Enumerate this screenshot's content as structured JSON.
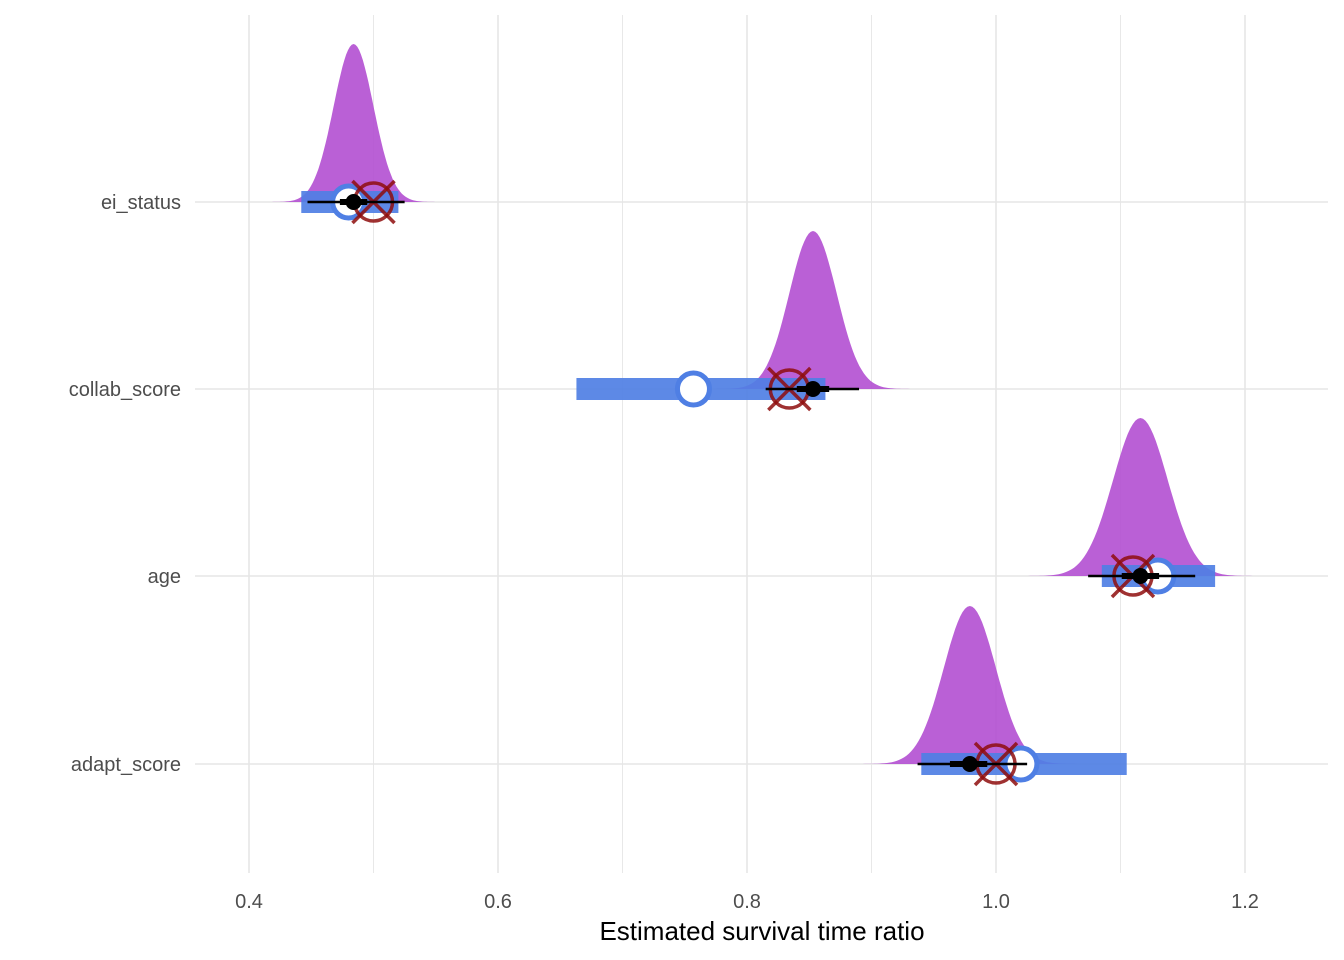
{
  "chart_data": {
    "type": "interval",
    "xlabel": "Estimated survival time ratio",
    "ylabel": "",
    "xlim": [
      0.4,
      1.2
    ],
    "x_ticks": [
      "0.4",
      "0.6",
      "0.8",
      "1.0",
      "1.2"
    ],
    "grid": true,
    "categories": [
      "ei_status",
      "collab_score",
      "age",
      "adapt_score"
    ],
    "colors": {
      "posterior": "#b34fd1",
      "interval_bar": "#4f7fe4",
      "open_circle": "#4f7fe4",
      "target": "#8e0d0d",
      "posterior_point": "#000000",
      "grid": "#e6e6e6"
    },
    "posterior": [
      {
        "category": "ei_status",
        "mean": 0.484,
        "sd": 0.016,
        "interval_50": [
          0.473,
          0.495
        ],
        "interval_95": [
          0.447,
          0.525
        ]
      },
      {
        "category": "collab_score",
        "mean": 0.853,
        "sd": 0.019,
        "interval_50": [
          0.84,
          0.866
        ],
        "interval_95": [
          0.815,
          0.89
        ]
      },
      {
        "category": "age",
        "mean": 1.116,
        "sd": 0.022,
        "interval_50": [
          1.101,
          1.131
        ],
        "interval_95": [
          1.074,
          1.16
        ]
      },
      {
        "category": "adapt_score",
        "mean": 0.979,
        "sd": 0.021,
        "interval_50": [
          0.963,
          0.993
        ],
        "interval_95": [
          0.937,
          1.025
        ]
      }
    ],
    "estimate_intervals": [
      {
        "category": "ei_status",
        "low": 0.442,
        "high": 0.52,
        "point": 0.48
      },
      {
        "category": "collab_score",
        "low": 0.663,
        "high": 0.863,
        "point": 0.757
      },
      {
        "category": "age",
        "low": 1.085,
        "high": 1.176,
        "point": 1.13
      },
      {
        "category": "adapt_score",
        "low": 0.94,
        "high": 1.105,
        "point": 1.02
      }
    ],
    "true_values": [
      {
        "category": "ei_status",
        "value": 0.5
      },
      {
        "category": "collab_score",
        "value": 0.834
      },
      {
        "category": "age",
        "value": 1.11
      },
      {
        "category": "adapt_score",
        "value": 1.0
      }
    ]
  }
}
